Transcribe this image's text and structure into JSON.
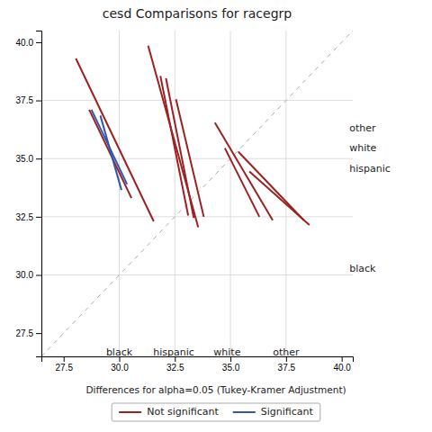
{
  "chart_data": {
    "type": "line",
    "title": "cesd Comparisons for racegrp",
    "legend_title": "Differences for alpha=0.05 (Tukey-Kramer Adjustment)",
    "xlim": [
      26.5,
      40.5
    ],
    "ylim": [
      26.5,
      40.5
    ],
    "xticks": [
      27.5,
      {
        "value": 30.0,
        "label": "30.0"
      },
      32.5,
      {
        "value": 35.0,
        "label": "35.0"
      },
      37.5,
      {
        "value": 40.0,
        "label": "40.0"
      }
    ],
    "yticks": [
      27.5,
      {
        "value": 30.0,
        "label": "30.0"
      },
      32.5,
      {
        "value": 35.0,
        "label": "35.0"
      },
      37.5,
      {
        "value": 40.0,
        "label": "40.0"
      }
    ],
    "group_means": [
      30.0,
      32.5,
      35.0,
      37.5
    ],
    "series": [
      {
        "name": "Not significant",
        "color": "#9b2222",
        "segments": [
          {
            "x": [
              28.05,
              31.55
            ],
            "values": [
              39.3,
              32.3
            ]
          },
          {
            "x": [
              28.65,
              30.55
            ],
            "values": [
              37.1,
              33.3
            ]
          },
          {
            "x": [
              31.3,
              33.55
            ],
            "values": [
              39.85,
              32.05
            ]
          },
          {
            "x": [
              31.85,
              33.1
            ],
            "values": [
              38.55,
              32.55
            ]
          },
          {
            "x": [
              32.1,
              33.35
            ],
            "values": [
              38.45,
              32.45
            ]
          },
          {
            "x": [
              32.55,
              33.8
            ],
            "values": [
              37.55,
              32.5
            ]
          },
          {
            "x": [
              34.3,
              36.9
            ],
            "values": [
              36.55,
              32.35
            ]
          },
          {
            "x": [
              34.75,
              36.3
            ],
            "values": [
              35.45,
              32.5
            ]
          },
          {
            "x": [
              35.35,
              38.3
            ],
            "values": [
              35.3,
              32.35
            ]
          },
          {
            "x": [
              35.85,
              38.55
            ],
            "values": [
              34.45,
              32.15
            ]
          }
        ]
      },
      {
        "name": "Significant",
        "color": "#3355aa",
        "segments": [
          {
            "x": [
              28.75,
              30.35
            ],
            "values": [
              37.1,
              33.9
            ]
          },
          {
            "x": [
              29.15,
              30.1
            ],
            "values": [
              36.85,
              33.65
            ]
          }
        ]
      }
    ],
    "x_group_labels": [
      {
        "text": "black",
        "x": 30.0,
        "y": 26.85
      },
      {
        "text": "hispanic",
        "x": 32.45,
        "y": 26.85
      },
      {
        "text": "white",
        "x": 34.85,
        "y": 26.85
      },
      {
        "text": "other",
        "x": 37.5,
        "y": 26.85
      }
    ],
    "y_group_labels": [
      {
        "text": "other",
        "x": 40.35,
        "y": 36.3
      },
      {
        "text": "white",
        "x": 40.35,
        "y": 35.45
      },
      {
        "text": "hispanic",
        "x": 40.35,
        "y": 34.55
      },
      {
        "text": "black",
        "x": 40.35,
        "y": 30.25
      }
    ]
  }
}
